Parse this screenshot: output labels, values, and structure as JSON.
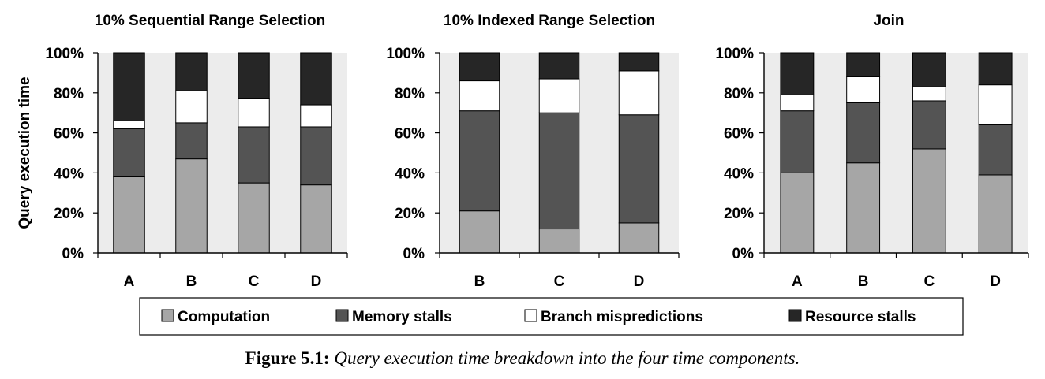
{
  "chart_data": [
    {
      "type": "bar",
      "stacked": true,
      "title": "10% Sequential Range Selection",
      "ylabel": "Query execution time",
      "ylim": [
        0,
        100
      ],
      "yticks": [
        "0%",
        "20%",
        "40%",
        "60%",
        "80%",
        "100%"
      ],
      "categories": [
        "A",
        "B",
        "C",
        "D"
      ],
      "series": [
        {
          "name": "Computation",
          "values": [
            38,
            47,
            35,
            34
          ]
        },
        {
          "name": "Memory stalls",
          "values": [
            24,
            18,
            28,
            29
          ]
        },
        {
          "name": "Branch mispredictions",
          "values": [
            4,
            16,
            14,
            11
          ]
        },
        {
          "name": "Resource stalls",
          "values": [
            34,
            19,
            23,
            26
          ]
        }
      ]
    },
    {
      "type": "bar",
      "stacked": true,
      "title": "10% Indexed Range Selection",
      "ylim": [
        0,
        100
      ],
      "yticks": [
        "0%",
        "20%",
        "40%",
        "60%",
        "80%",
        "100%"
      ],
      "categories": [
        "B",
        "C",
        "D"
      ],
      "series": [
        {
          "name": "Computation",
          "values": [
            21,
            12,
            15
          ]
        },
        {
          "name": "Memory stalls",
          "values": [
            50,
            58,
            54
          ]
        },
        {
          "name": "Branch mispredictions",
          "values": [
            15,
            17,
            22
          ]
        },
        {
          "name": "Resource stalls",
          "values": [
            14,
            13,
            9
          ]
        }
      ]
    },
    {
      "type": "bar",
      "stacked": true,
      "title": "Join",
      "ylim": [
        0,
        100
      ],
      "yticks": [
        "0%",
        "20%",
        "40%",
        "60%",
        "80%",
        "100%"
      ],
      "categories": [
        "A",
        "B",
        "C",
        "D"
      ],
      "series": [
        {
          "name": "Computation",
          "values": [
            40,
            45,
            52,
            39
          ]
        },
        {
          "name": "Memory stalls",
          "values": [
            31,
            30,
            24,
            25
          ]
        },
        {
          "name": "Branch mispredictions",
          "values": [
            8,
            13,
            7,
            20
          ]
        },
        {
          "name": "Resource stalls",
          "values": [
            21,
            12,
            17,
            16
          ]
        }
      ]
    }
  ],
  "legend": {
    "placement": "bottom",
    "items": [
      "Computation",
      "Memory stalls",
      "Branch mispredictions",
      "Resource stalls"
    ]
  },
  "colors": {
    "Computation": "#a6a6a6",
    "Memory stalls": "#545454",
    "Branch mispredictions": "#ffffff",
    "Resource stalls": "#262626",
    "plot_background": "#ececec"
  },
  "caption": {
    "lead": "Figure 5.1:",
    "rest": "Query execution time breakdown into the four time components."
  }
}
